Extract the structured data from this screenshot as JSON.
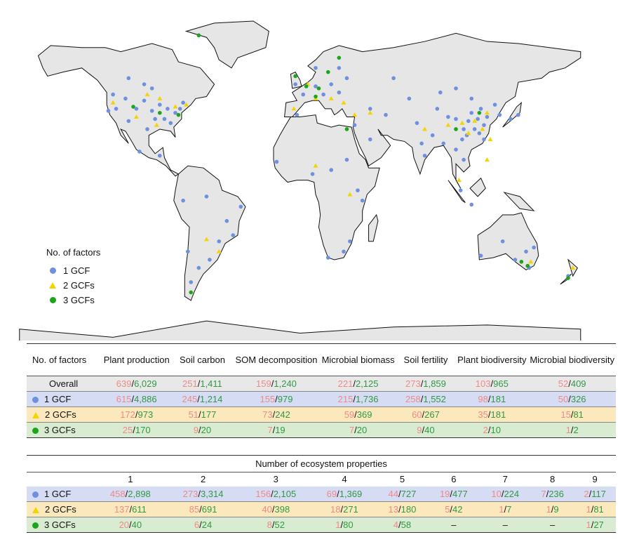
{
  "colors": {
    "gcf1": "#6f8fe0",
    "gcf2": "#f2d400",
    "gcf3": "#1aa51a",
    "land": "#e6e6e6",
    "border": "#111111",
    "red": "#ef8a88",
    "green": "#2e9a45"
  },
  "legend": {
    "title": "No. of factors",
    "items": [
      {
        "symbol": "circle",
        "label": "1 GCF"
      },
      {
        "symbol": "triangle",
        "label": "2 GCFs"
      },
      {
        "symbol": "circle-green",
        "label": "3 GCFs"
      }
    ]
  },
  "sites": {
    "gcf1": [
      [
        -120,
        47
      ],
      [
        -118,
        40
      ],
      [
        -112,
        45
      ],
      [
        -105,
        40
      ],
      [
        -100,
        44
      ],
      [
        -95,
        39
      ],
      [
        -90,
        42
      ],
      [
        -85,
        40
      ],
      [
        -80,
        38
      ],
      [
        -77,
        40
      ],
      [
        -75,
        43
      ],
      [
        -98,
        30
      ],
      [
        -83,
        33
      ],
      [
        -123,
        39
      ],
      [
        -110,
        34
      ],
      [
        -93,
        35
      ],
      [
        -87,
        35
      ],
      [
        -100,
        52
      ],
      [
        -110,
        55
      ],
      [
        -95,
        50
      ],
      [
        -103,
        19
      ],
      [
        -90,
        17
      ],
      [
        -75,
        -5
      ],
      [
        -60,
        -3
      ],
      [
        -47,
        -15
      ],
      [
        -52,
        -25
      ],
      [
        -58,
        -34
      ],
      [
        -65,
        -38
      ],
      [
        -70,
        -45
      ],
      [
        -43,
        -22
      ],
      [
        -3,
        52
      ],
      [
        2,
        47
      ],
      [
        10,
        51
      ],
      [
        15,
        47
      ],
      [
        20,
        52
      ],
      [
        25,
        48
      ],
      [
        30,
        55
      ],
      [
        10,
        60
      ],
      [
        25,
        60
      ],
      [
        35,
        32
      ],
      [
        45,
        40
      ],
      [
        55,
        37
      ],
      [
        45,
        25
      ],
      [
        30,
        15
      ],
      [
        37,
        0
      ],
      [
        32,
        -25
      ],
      [
        28,
        -30
      ],
      [
        18,
        -33
      ],
      [
        60,
        55
      ],
      [
        75,
        33
      ],
      [
        78,
        23
      ],
      [
        80,
        17
      ],
      [
        85,
        27
      ],
      [
        88,
        40
      ],
      [
        95,
        36
      ],
      [
        100,
        35
      ],
      [
        105,
        30
      ],
      [
        108,
        34
      ],
      [
        112,
        30
      ],
      [
        115,
        28
      ],
      [
        118,
        32
      ],
      [
        120,
        36
      ],
      [
        116,
        40
      ],
      [
        110,
        38
      ],
      [
        104,
        25
      ],
      [
        100,
        20
      ],
      [
        105,
        15
      ],
      [
        125,
        42
      ],
      [
        128,
        37
      ],
      [
        135,
        35
      ],
      [
        140,
        37
      ],
      [
        100,
        50
      ],
      [
        90,
        48
      ],
      [
        110,
        45
      ],
      [
        103,
        0
      ],
      [
        110,
        -7
      ],
      [
        145,
        -30
      ],
      [
        150,
        -28
      ],
      [
        147,
        -38
      ],
      [
        116,
        -32
      ],
      [
        130,
        -25
      ],
      [
        138,
        -34
      ],
      [
        172,
        -42
      ],
      [
        -38,
        -8
      ],
      [
        -72,
        -30
      ],
      [
        -2,
        37
      ],
      [
        20,
        10
      ],
      [
        8,
        8
      ],
      [
        -15,
        14
      ],
      [
        40,
        -5
      ],
      [
        70,
        45
      ],
      [
        118,
        25
      ],
      [
        114,
        35
      ],
      [
        107,
        27
      ],
      [
        92,
        23
      ]
    ],
    "gcf2": [
      [
        -120,
        43
      ],
      [
        -98,
        47
      ],
      [
        -90,
        45
      ],
      [
        -80,
        41
      ],
      [
        -92,
        32
      ],
      [
        -73,
        42
      ],
      [
        -105,
        36
      ],
      [
        -60,
        -24
      ],
      [
        -52,
        -30
      ],
      [
        5,
        52
      ],
      [
        10,
        45
      ],
      [
        20,
        45
      ],
      [
        28,
        43
      ],
      [
        35,
        37
      ],
      [
        45,
        38
      ],
      [
        80,
        30
      ],
      [
        95,
        32
      ],
      [
        104,
        33
      ],
      [
        112,
        34
      ],
      [
        117,
        30
      ],
      [
        120,
        38
      ],
      [
        108,
        28
      ],
      [
        122,
        25
      ],
      [
        10,
        12
      ],
      [
        32,
        -2
      ],
      [
        102,
        5
      ],
      [
        120,
        15
      ],
      [
        148,
        -35
      ],
      [
        175,
        -38
      ],
      [
        -4,
        40
      ]
    ],
    "gcf3": [
      [
        -65,
        76
      ],
      [
        -107,
        41
      ],
      [
        -90,
        38
      ],
      [
        -78,
        37
      ],
      [
        12,
        50
      ],
      [
        4,
        51
      ],
      [
        18,
        58
      ],
      [
        25,
        65
      ],
      [
        10,
        46
      ],
      [
        115,
        38
      ],
      [
        146,
        -37
      ],
      [
        172,
        -43
      ],
      [
        -70,
        -50
      ],
      [
        100,
        30
      ],
      [
        30,
        30
      ],
      [
        -3,
        56
      ],
      [
        142,
        -35
      ]
    ]
  },
  "table1": {
    "header": [
      "No. of factors",
      "Plant production",
      "Soil carbon",
      "SOM decomposition",
      "Microbial biomass",
      "Soil fertility",
      "Plant biodiversity",
      "Microbial biodiversity"
    ],
    "rows": [
      {
        "label": "Overall",
        "symbol": "none",
        "cells": [
          [
            "639",
            "6,029"
          ],
          [
            "251",
            "1,411"
          ],
          [
            "159",
            "1,240"
          ],
          [
            "221",
            "2,125"
          ],
          [
            "273",
            "1,859"
          ],
          [
            "103",
            "965"
          ],
          [
            "52",
            "409"
          ]
        ]
      },
      {
        "label": "1 GCF",
        "symbol": "circle",
        "cells": [
          [
            "615",
            "4,886"
          ],
          [
            "245",
            "1,214"
          ],
          [
            "155",
            "979"
          ],
          [
            "215",
            "1,736"
          ],
          [
            "258",
            "1,552"
          ],
          [
            "98",
            "181"
          ],
          [
            "50",
            "326"
          ]
        ]
      },
      {
        "label": "2 GCFs",
        "symbol": "triangle",
        "cells": [
          [
            "172",
            "973"
          ],
          [
            "51",
            "177"
          ],
          [
            "73",
            "242"
          ],
          [
            "59",
            "369"
          ],
          [
            "60",
            "267"
          ],
          [
            "35",
            "181"
          ],
          [
            "15",
            "81"
          ]
        ]
      },
      {
        "label": "3 GCFs",
        "symbol": "circle-green",
        "cells": [
          [
            "25",
            "170"
          ],
          [
            "9",
            "20"
          ],
          [
            "7",
            "19"
          ],
          [
            "7",
            "20"
          ],
          [
            "9",
            "40"
          ],
          [
            "2",
            "10"
          ],
          [
            "1",
            "2"
          ]
        ]
      }
    ]
  },
  "table2": {
    "caption": "Number of ecosystem properties",
    "columns": [
      "1",
      "2",
      "3",
      "4",
      "5",
      "6",
      "7",
      "8",
      "9"
    ],
    "rows": [
      {
        "label": "1 GCF",
        "symbol": "circle",
        "cells": [
          [
            "458",
            "2,898"
          ],
          [
            "273",
            "3,314"
          ],
          [
            "156",
            "2,105"
          ],
          [
            "69",
            "1,369"
          ],
          [
            "44",
            "727"
          ],
          [
            "19",
            "477"
          ],
          [
            "10",
            "224"
          ],
          [
            "7",
            "236"
          ],
          [
            "2",
            "117"
          ]
        ]
      },
      {
        "label": "2 GCFs",
        "symbol": "triangle",
        "cells": [
          [
            "137",
            "611"
          ],
          [
            "85",
            "691"
          ],
          [
            "40",
            "398"
          ],
          [
            "18",
            "271"
          ],
          [
            "13",
            "180"
          ],
          [
            "5",
            "42"
          ],
          [
            "1",
            "7"
          ],
          [
            "1",
            "9"
          ],
          [
            "1",
            "81"
          ]
        ]
      },
      {
        "label": "3 GCFs",
        "symbol": "circle-green",
        "cells": [
          [
            "20",
            "40"
          ],
          [
            "6",
            "24"
          ],
          [
            "8",
            "52"
          ],
          [
            "1",
            "80"
          ],
          [
            "4",
            "58"
          ],
          [
            "–"
          ],
          [
            "–"
          ],
          [
            "–"
          ],
          [
            "1",
            "27"
          ]
        ]
      }
    ]
  }
}
